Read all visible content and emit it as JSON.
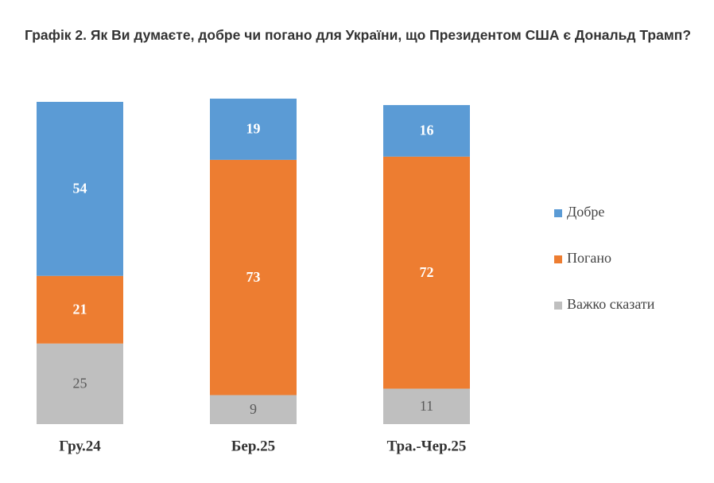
{
  "chart_data": {
    "type": "stacked-bar",
    "title": "Графік 2. Як Ви думаєте, добре чи погано для України, що Президентом США є Дональд Трамп?",
    "categories": [
      "Гру.24",
      "Бер.25",
      "Тра.-Чер.25"
    ],
    "series": [
      {
        "name": "Добре",
        "color": "#5b9bd5",
        "values": [
          54,
          19,
          16
        ]
      },
      {
        "name": "Погано",
        "color": "#ed7d31",
        "values": [
          21,
          73,
          72
        ]
      },
      {
        "name": "Важко сказати",
        "color": "#bfbfbf",
        "values": [
          25,
          9,
          11
        ]
      }
    ],
    "legend": "right"
  }
}
